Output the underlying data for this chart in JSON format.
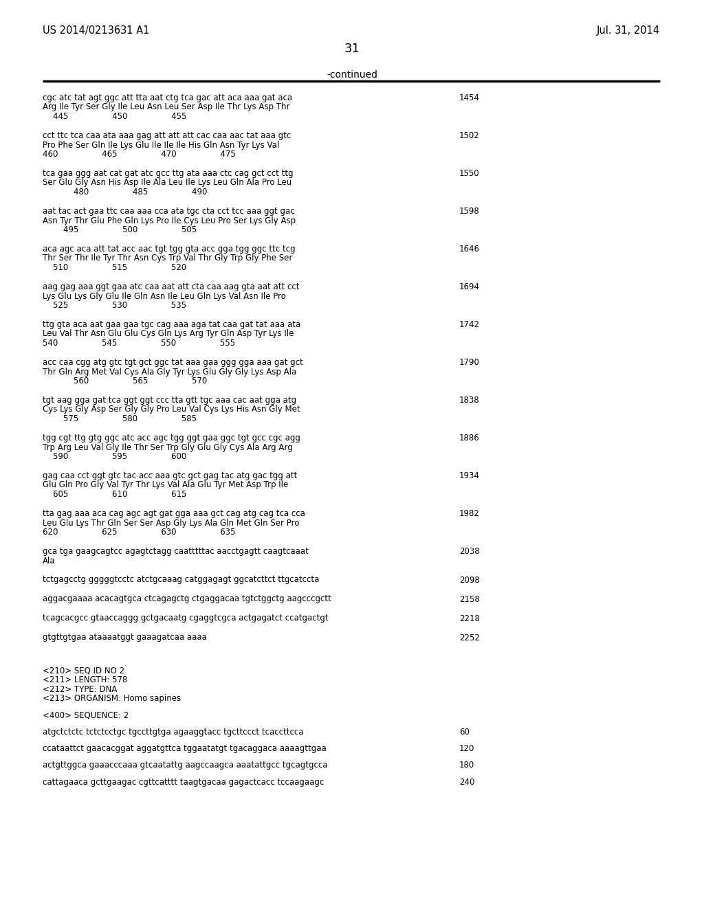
{
  "header_left": "US 2014/0213631 A1",
  "header_right": "Jul. 31, 2014",
  "page_number": "31",
  "continued_text": "-continued",
  "background_color": "#ffffff",
  "text_color": "#000000",
  "content": [
    {
      "type": "block3",
      "dna": "cgc atc tat agt ggc att tta aat ctg tca gac att aca aaa gat aca",
      "num": "1454",
      "aa": "Arg Ile Tyr Ser Gly Ile Leu Asn Leu Ser Asp Ile Thr Lys Asp Thr",
      "pos": "    445                 450                 455"
    },
    {
      "type": "block3",
      "dna": "cct ttc tca caa ata aaa gag att att att cac caa aac tat aaa gtc",
      "num": "1502",
      "aa": "Pro Phe Ser Gln Ile Lys Glu Ile Ile Ile His Gln Asn Tyr Lys Val",
      "pos": "460                 465                 470                 475"
    },
    {
      "type": "block3",
      "dna": "tca gaa ggg aat cat gat atc gcc ttg ata aaa ctc cag gct cct ttg",
      "num": "1550",
      "aa": "Ser Glu Gly Asn His Asp Ile Ala Leu Ile Lys Leu Gln Ala Pro Leu",
      "pos": "            480                 485                 490"
    },
    {
      "type": "block3",
      "dna": "aat tac act gaa ttc caa aaa cca ata tgc cta cct tcc aaa ggt gac",
      "num": "1598",
      "aa": "Asn Tyr Thr Glu Phe Gln Lys Pro Ile Cys Leu Pro Ser Lys Gly Asp",
      "pos": "        495                 500                 505"
    },
    {
      "type": "block3",
      "dna": "aca agc aca att tat acc aac tgt tgg gta acc gga tgg ggc ttc tcg",
      "num": "1646",
      "aa": "Thr Ser Thr Ile Tyr Thr Asn Cys Trp Val Thr Gly Trp Gly Phe Ser",
      "pos": "    510                 515                 520"
    },
    {
      "type": "block3",
      "dna": "aag gag aaa ggt gaa atc caa aat att cta caa aag gta aat att cct",
      "num": "1694",
      "aa": "Lys Glu Lys Gly Glu Ile Gln Asn Ile Leu Gln Lys Val Asn Ile Pro",
      "pos": "    525                 530                 535"
    },
    {
      "type": "block3",
      "dna": "ttg gta aca aat gaa gaa tgc cag aaa aga tat caa gat tat aaa ata",
      "num": "1742",
      "aa": "Leu Val Thr Asn Glu Glu Cys Gln Lys Arg Tyr Gln Asp Tyr Lys Ile",
      "pos": "540                 545                 550                 555"
    },
    {
      "type": "block3",
      "dna": "acc caa cgg atg gtc tgt gct ggc tat aaa gaa ggg gga aaa gat gct",
      "num": "1790",
      "aa": "Thr Gln Arg Met Val Cys Ala Gly Tyr Lys Glu Gly Gly Lys Asp Ala",
      "pos": "            560                 565                 570"
    },
    {
      "type": "block3",
      "dna": "tgt aag gga gat tca ggt ggt ccc tta gtt tgc aaa cac aat gga atg",
      "num": "1838",
      "aa": "Cys Lys Gly Asp Ser Gly Gly Pro Leu Val Cys Lys His Asn Gly Met",
      "pos": "        575                 580                 585"
    },
    {
      "type": "block3",
      "dna": "tgg cgt ttg gtg ggc atc acc agc tgg ggt gaa ggc tgt gcc cgc agg",
      "num": "1886",
      "aa": "Trp Arg Leu Val Gly Ile Thr Ser Trp Gly Glu Gly Cys Ala Arg Arg",
      "pos": "    590                 595                 600"
    },
    {
      "type": "block3",
      "dna": "gag caa cct ggt gtc tac acc aaa gtc gct gag tac atg gac tgg att",
      "num": "1934",
      "aa": "Glu Gln Pro Gly Val Tyr Thr Lys Val Ala Glu Tyr Met Asp Trp Ile",
      "pos": "    605                 610                 615"
    },
    {
      "type": "block3",
      "dna": "tta gag aaa aca cag agc agt gat gga aaa gct cag atg cag tca cca",
      "num": "1982",
      "aa": "Leu Glu Lys Thr Gln Ser Ser Asp Gly Lys Ala Gln Met Gln Ser Pro",
      "pos": "620                 625                 630                 635"
    },
    {
      "type": "block2",
      "dna": "gca tga gaagcagtcc agagtctagg caatttttac aacctgagtt caagtcaaat",
      "num": "2038",
      "aa": "Ala"
    },
    {
      "type": "block1",
      "dna": "tctgagcctg gggggtcctc atctgcaaag catggagagt ggcatcttct ttgcatccta",
      "num": "2098"
    },
    {
      "type": "block1",
      "dna": "aggacgaaaa acacagtgca ctcagagctg ctgaggacaa tgtctggctg aagcccgctt",
      "num": "2158"
    },
    {
      "type": "block1",
      "dna": "tcagcacgcc gtaaccaggg gctgacaatg cgaggtcgca actgagatct ccatgactgt",
      "num": "2218"
    },
    {
      "type": "block1",
      "dna": "gtgttgtgaa ataaaatggt gaaagatcaa aaaa",
      "num": "2252"
    },
    {
      "type": "gap2"
    },
    {
      "type": "seqinfo",
      "lines": [
        "<210> SEQ ID NO 2",
        "<211> LENGTH: 578",
        "<212> TYPE: DNA",
        "<213> ORGANISM: Homo sapines"
      ]
    },
    {
      "type": "gap1"
    },
    {
      "type": "seqheader",
      "text": "<400> SEQUENCE: 2"
    },
    {
      "type": "gap1"
    },
    {
      "type": "seqdna",
      "dna": "atgctctctc tctctcctgc tgccttgtga agaaggtacc tgcttccct tcaccttcca",
      "num": "60"
    },
    {
      "type": "gap1"
    },
    {
      "type": "seqdna",
      "dna": "ccataattct gaacacggat aggatgttca tggaatatgt tgacaggaca aaaagttgaa",
      "num": "120"
    },
    {
      "type": "gap1"
    },
    {
      "type": "seqdna",
      "dna": "actgttggca gaaacccaaa gtcaatattg aagccaagca aaatattgcc tgcagtgcca",
      "num": "180"
    },
    {
      "type": "gap1"
    },
    {
      "type": "seqdna",
      "dna": "cattagaaca gcttgaagac cgttcatttt taagtgacaa gagactcacc tccaagaagc",
      "num": "240"
    }
  ]
}
